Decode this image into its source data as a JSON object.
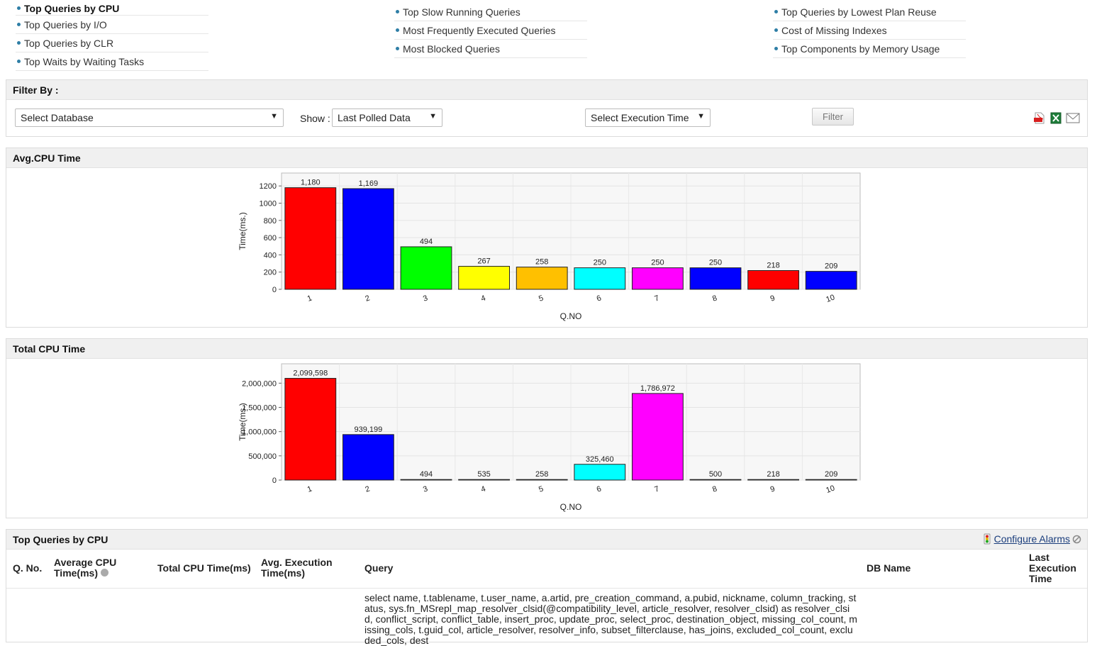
{
  "nav": {
    "col1": [
      "Top Queries by CPU",
      "Top Queries by I/O",
      "Top Queries by CLR",
      "Top Waits by Waiting Tasks"
    ],
    "col2": [
      "Top Slow Running Queries",
      "Most Frequently Executed Queries",
      "Most Blocked Queries"
    ],
    "col3": [
      "Top Queries by Lowest Plan Reuse",
      "Cost of Missing Indexes",
      "Top Components by Memory Usage"
    ]
  },
  "filter": {
    "title": "Filter By :",
    "database": "Select Database",
    "show_label": "Show :",
    "show_value": "Last Polled Data",
    "exec_time": "Select Execution Time",
    "button": "Filter"
  },
  "avg_panel": {
    "title": "Avg.CPU Time"
  },
  "total_panel": {
    "title": "Total CPU Time"
  },
  "chart_data": [
    {
      "type": "bar",
      "categories": [
        "1",
        "2",
        "3",
        "4",
        "5",
        "6",
        "7",
        "8",
        "9",
        "10"
      ],
      "values": [
        1180,
        1169,
        494,
        267,
        258,
        250,
        250,
        250,
        218,
        209
      ],
      "labels": [
        "1,180",
        "1,169",
        "494",
        "267",
        "258",
        "250",
        "250",
        "250",
        "218",
        "209"
      ],
      "colors": [
        "#ff0000",
        "#0000ff",
        "#00ff00",
        "#ffff00",
        "#ffc000",
        "#00ffff",
        "#ff00ff",
        "#0000ff",
        "#ff0000",
        "#0000ff"
      ],
      "xlabel": "Q.NO",
      "ylabel": "Time(ms.)",
      "yticks": [
        0,
        200,
        400,
        600,
        800,
        1000,
        1200
      ],
      "ytick_labels": [
        "0",
        "200",
        "400",
        "600",
        "800",
        "1000",
        "1200"
      ],
      "ylim": [
        0,
        1350
      ],
      "grid": true
    },
    {
      "type": "bar",
      "categories": [
        "1",
        "2",
        "3",
        "4",
        "5",
        "6",
        "7",
        "8",
        "9",
        "10"
      ],
      "values": [
        2099598,
        939199,
        494,
        535,
        258,
        325460,
        1786972,
        500,
        218,
        209
      ],
      "labels": [
        "2,099,598",
        "939,199",
        "494",
        "535",
        "258",
        "325,460",
        "1,786,972",
        "500",
        "218",
        "209"
      ],
      "colors": [
        "#ff0000",
        "#0000ff",
        "#00ff00",
        "#ffff00",
        "#ffc000",
        "#00ffff",
        "#ff00ff",
        "#0000ff",
        "#ff0000",
        "#0000ff"
      ],
      "xlabel": "Q.NO",
      "ylabel": "Time(ms.)",
      "yticks": [
        0,
        500000,
        1000000,
        1500000,
        2000000
      ],
      "ytick_labels": [
        "0",
        "500,000",
        "1,000,000",
        "1,500,000",
        "2,000,000"
      ],
      "ylim": [
        0,
        2400000
      ],
      "grid": true
    }
  ],
  "table": {
    "title": "Top Queries by CPU",
    "configure_alarms": "Configure Alarms",
    "headers": {
      "qno": "Q. No.",
      "avg_cpu_1": "Average CPU",
      "avg_cpu_2": "Time(ms)",
      "total_cpu": "Total CPU Time(ms)",
      "avg_exec_1": "Avg. Execution",
      "avg_exec_2": "Time(ms)",
      "query": "Query",
      "db_name": "DB Name",
      "last_exec_1": "Last",
      "last_exec_2": "Execution",
      "last_exec_3": "Time"
    },
    "first_row_query": "select name, t.tablename, t.user_name, a.artid, pre_creation_command, a.pubid, nickname, column_tracking, status, sys.fn_MSrepl_map_resolver_clsid(@compatibility_level, article_resolver, resolver_clsid) as resolver_clsid, conflict_script, conflict_table, insert_proc, update_proc, select_proc, destination_object, missing_col_count, missing_cols, t.guid_col, article_resolver, resolver_info, subset_filterclause, has_joins, excluded_col_count, excluded_cols, dest"
  }
}
